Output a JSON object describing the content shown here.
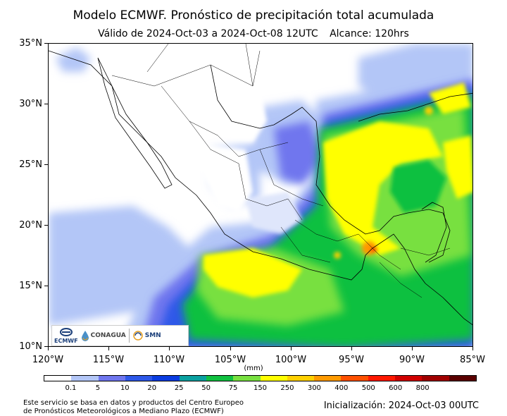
{
  "header": {
    "title": "Modelo ECMWF. Pronóstico de precipitación total acumulada",
    "valid_text": "Válido de 2024-Oct-03 a 2024-Oct-08 12UTC",
    "range_text": "Alcance: 120hrs"
  },
  "axes": {
    "lat_ticks": [
      "35°N",
      "30°N",
      "25°N",
      "20°N",
      "15°N",
      "10°N"
    ],
    "lon_ticks": [
      "120°W",
      "115°W",
      "110°W",
      "105°W",
      "100°W",
      "95°W",
      "90°W",
      "85°W"
    ]
  },
  "colorbar": {
    "unit": "(mm)",
    "labels": [
      "0.1",
      "5",
      "10",
      "20",
      "25",
      "50",
      "75",
      "150",
      "250",
      "300",
      "400",
      "500",
      "600",
      "800"
    ],
    "colors": [
      "#ffffff",
      "#b3c6f7",
      "#6f76ee",
      "#2d58e8",
      "#0a3ce0",
      "#0aa0a0",
      "#10c040",
      "#78e040",
      "#ffff00",
      "#ffd000",
      "#ff9a00",
      "#ff5000",
      "#ff1800",
      "#d00000",
      "#a00000",
      "#5a0000"
    ]
  },
  "logos": {
    "ecmwf": "ECMWF",
    "conagua": "CONAGUA",
    "smn": "SMN"
  },
  "footer": {
    "credit_line1": "Este servicio se basa en datos y productos del Centro Europeo",
    "credit_line2": "de Pronósticos Meteorológicos a Mediano Plazo (ECMWF)",
    "init_text": "Inicialización: 2024-Oct-03 00UTC"
  }
}
